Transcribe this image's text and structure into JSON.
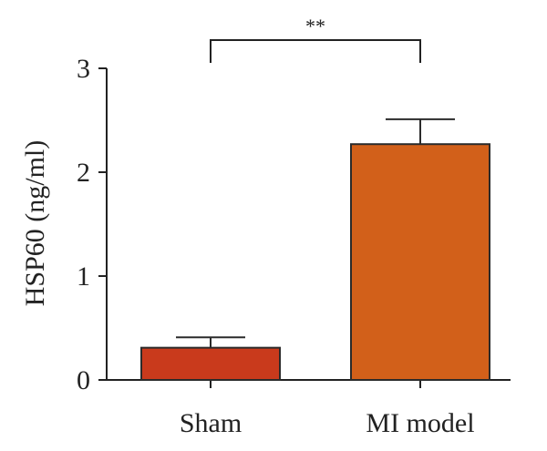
{
  "chart_data": {
    "type": "bar",
    "categories": [
      "Sham",
      "MI model"
    ],
    "values": [
      0.31,
      2.27
    ],
    "errors": [
      0.1,
      0.24
    ],
    "colors": [
      "#c93a1c",
      "#d2601a"
    ],
    "title": "",
    "xlabel": "",
    "ylabel": "HSP60 (ng/ml)",
    "ylim": [
      0,
      3
    ],
    "yticks": [
      0,
      1,
      2,
      3
    ],
    "grid": false,
    "significance": {
      "label": "**",
      "between": [
        "Sham",
        "MI model"
      ]
    }
  }
}
